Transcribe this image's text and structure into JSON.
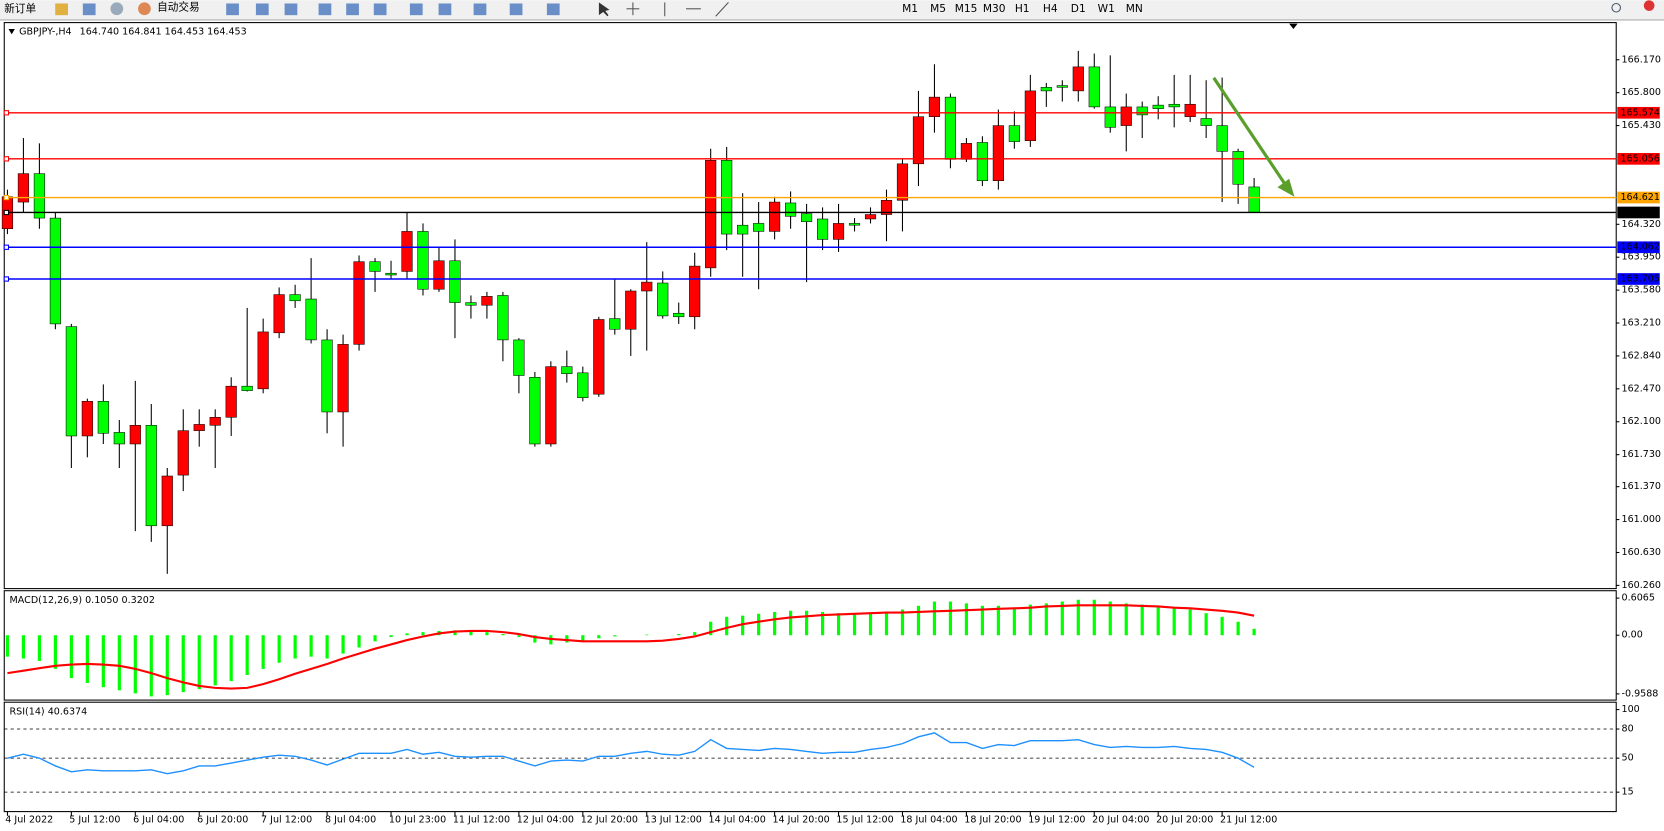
{
  "toolbar": {
    "new_order": "新订单",
    "auto_trading": "自动交易",
    "timeframes": [
      "M1",
      "M5",
      "M15",
      "M30",
      "H1",
      "H4",
      "D1",
      "W1",
      "MN"
    ]
  },
  "chart_data": [
    {
      "type": "candlestick",
      "title": "GBPJPY-,H4",
      "subtitle": "164.740 164.841 164.453 164.453",
      "categories": [
        "4 Jul 2022",
        null,
        null,
        null,
        "5 Jul 12:00",
        null,
        null,
        null,
        "6 Jul 04:00",
        null,
        null,
        null,
        "6 Jul 20:00",
        null,
        null,
        null,
        "7 Jul 12:00",
        null,
        null,
        null,
        "8 Jul 04:00",
        null,
        null,
        null,
        "10 Jul 23:00",
        null,
        null,
        null,
        "11 Jul 12:00",
        null,
        null,
        null,
        "12 Jul 04:00",
        null,
        null,
        null,
        "12 Jul 20:00",
        null,
        null,
        null,
        "13 Jul 12:00",
        null,
        null,
        null,
        "14 Jul 04:00",
        null,
        null,
        null,
        "14 Jul 20:00",
        null,
        null,
        null,
        "15 Jul 12:00",
        null,
        null,
        null,
        "18 Jul 04:00",
        null,
        null,
        null,
        "18 Jul 20:00",
        null,
        null,
        null,
        "19 Jul 12:00",
        null,
        null,
        null,
        "20 Jul 04:00",
        null,
        null,
        null,
        "20 Jul 20:00",
        null,
        null,
        null,
        "21 Jul 12:00",
        null,
        null
      ],
      "open": [
        164.27,
        164.57,
        164.89,
        164.39,
        163.17,
        161.94,
        162.33,
        161.98,
        161.85,
        162.06,
        160.93,
        161.5,
        162.0,
        162.06,
        162.15,
        162.5,
        162.47,
        163.1,
        163.53,
        163.48,
        163.02,
        162.21,
        162.97,
        163.9,
        163.77,
        163.79,
        164.24,
        163.59,
        163.91,
        163.44,
        163.41,
        163.52,
        163.02,
        162.6,
        161.85,
        162.72,
        162.65,
        162.41,
        163.26,
        163.14,
        163.57,
        163.66,
        163.32,
        163.28,
        163.83,
        165.04,
        164.31,
        164.33,
        164.24,
        164.56,
        164.44,
        164.38,
        164.15,
        164.33,
        164.38,
        164.43,
        164.59,
        165.0,
        165.53,
        165.75,
        165.05,
        165.24,
        164.81,
        165.43,
        165.26,
        165.86,
        165.88,
        165.82,
        166.09,
        165.64,
        165.43,
        165.64,
        165.66,
        165.67,
        165.53,
        165.51,
        165.43,
        165.14,
        164.74
      ],
      "high": [
        164.71,
        165.29,
        165.23,
        164.45,
        163.2,
        162.36,
        162.52,
        162.12,
        162.56,
        162.3,
        161.58,
        162.24,
        162.24,
        162.24,
        162.6,
        163.38,
        163.26,
        163.61,
        163.64,
        163.94,
        163.14,
        163.08,
        163.97,
        163.94,
        163.91,
        164.45,
        164.33,
        164.07,
        164.15,
        163.52,
        163.56,
        163.56,
        163.04,
        162.66,
        162.78,
        162.9,
        162.72,
        163.28,
        163.71,
        163.59,
        164.12,
        163.79,
        163.44,
        164.0,
        165.17,
        165.19,
        164.67,
        164.57,
        164.63,
        164.69,
        164.55,
        164.51,
        164.55,
        164.39,
        164.51,
        164.71,
        165.05,
        165.82,
        166.12,
        165.79,
        165.29,
        165.31,
        165.61,
        165.59,
        166.0,
        165.91,
        165.94,
        166.27,
        166.24,
        166.22,
        165.79,
        165.7,
        165.76,
        166.0,
        166.0,
        165.94,
        165.97,
        165.17,
        164.841
      ],
      "low": [
        164.21,
        164.45,
        164.27,
        163.14,
        161.58,
        161.7,
        161.85,
        161.58,
        160.87,
        160.75,
        160.39,
        161.32,
        161.82,
        161.58,
        161.94,
        162.44,
        162.42,
        163.04,
        163.38,
        162.98,
        161.97,
        161.82,
        162.9,
        163.56,
        163.71,
        163.71,
        163.52,
        163.56,
        163.04,
        163.26,
        163.26,
        162.78,
        162.42,
        161.82,
        161.82,
        162.54,
        162.33,
        162.38,
        163.08,
        162.84,
        162.9,
        163.26,
        163.2,
        163.14,
        163.73,
        164.03,
        163.73,
        163.59,
        164.15,
        164.27,
        163.67,
        164.03,
        164.01,
        164.24,
        164.33,
        164.13,
        164.24,
        164.75,
        165.35,
        164.95,
        165.02,
        164.75,
        164.71,
        165.17,
        165.19,
        165.64,
        165.7,
        165.7,
        165.62,
        165.35,
        165.14,
        165.29,
        165.5,
        165.41,
        165.47,
        165.29,
        164.57,
        164.55,
        164.453
      ],
      "close": [
        164.63,
        164.89,
        164.39,
        163.2,
        161.94,
        162.33,
        161.97,
        161.85,
        162.06,
        160.93,
        161.49,
        162.0,
        162.07,
        162.15,
        162.5,
        162.45,
        163.11,
        163.53,
        163.46,
        163.02,
        162.21,
        162.97,
        163.9,
        163.79,
        163.75,
        164.24,
        163.59,
        163.91,
        163.44,
        163.41,
        163.51,
        163.02,
        162.62,
        161.85,
        162.72,
        162.64,
        162.37,
        163.25,
        163.14,
        163.57,
        163.67,
        163.29,
        163.28,
        163.85,
        165.04,
        164.21,
        164.21,
        164.24,
        164.57,
        164.41,
        164.35,
        164.15,
        164.33,
        164.31,
        164.43,
        164.59,
        165.0,
        165.53,
        165.75,
        165.05,
        165.23,
        164.81,
        165.43,
        165.25,
        165.82,
        165.82,
        165.86,
        166.09,
        165.64,
        165.41,
        165.64,
        165.55,
        165.62,
        165.64,
        165.67,
        165.43,
        165.14,
        164.77,
        164.453
      ],
      "up_color": "#ff0000",
      "down_color": "#00ff00",
      "ylim": [
        160.236,
        166.576
      ],
      "yticks": [
        {
          "value": 166.17,
          "label": "166.170"
        },
        {
          "value": 165.8,
          "label": "165.800"
        },
        {
          "value": 165.43,
          "label": "165.430"
        },
        {
          "value": 164.32,
          "label": "164.320"
        },
        {
          "value": 163.95,
          "label": "163.950"
        },
        {
          "value": 163.58,
          "label": "163.580"
        },
        {
          "value": 163.21,
          "label": "163.210"
        },
        {
          "value": 162.84,
          "label": "162.840"
        },
        {
          "value": 162.47,
          "label": "162.470"
        },
        {
          "value": 162.1,
          "label": "162.100"
        },
        {
          "value": 161.73,
          "label": "161.730"
        },
        {
          "value": 161.37,
          "label": "161.370"
        },
        {
          "value": 161.0,
          "label": "161.000"
        },
        {
          "value": 160.63,
          "label": "160.630"
        },
        {
          "value": 160.26,
          "label": "160.260"
        }
      ],
      "hlines": [
        {
          "value": 165.574,
          "color": "#ff0000"
        },
        {
          "value": 165.056,
          "color": "#ff0000"
        },
        {
          "value": 164.621,
          "color": "#ffa500"
        },
        {
          "value": 164.453,
          "color": "#000000"
        },
        {
          "value": 164.062,
          "color": "#0000ff"
        },
        {
          "value": 163.705,
          "color": "#0000ff"
        }
      ]
    },
    {
      "type": "macd",
      "title": "MACD(12,26,9) 0.1050 0.3202",
      "series": [
        {
          "kind": "bar",
          "color": "#00ff00",
          "values": [
            -0.35,
            -0.38,
            -0.42,
            -0.55,
            -0.7,
            -0.78,
            -0.85,
            -0.9,
            -0.95,
            -1.0,
            -0.98,
            -0.93,
            -0.88,
            -0.82,
            -0.75,
            -0.65,
            -0.55,
            -0.45,
            -0.38,
            -0.35,
            -0.38,
            -0.3,
            -0.2,
            -0.1,
            -0.03,
            0.03,
            0.05,
            0.07,
            0.08,
            0.06,
            0.05,
            0.02,
            -0.03,
            -0.12,
            -0.15,
            -0.12,
            -0.1,
            -0.05,
            -0.02,
            0.0,
            0.01,
            0.0,
            0.02,
            0.05,
            0.22,
            0.3,
            0.32,
            0.35,
            0.38,
            0.4,
            0.4,
            0.38,
            0.36,
            0.35,
            0.36,
            0.38,
            0.42,
            0.48,
            0.55,
            0.55,
            0.52,
            0.48,
            0.48,
            0.45,
            0.5,
            0.52,
            0.55,
            0.58,
            0.58,
            0.55,
            0.52,
            0.5,
            0.48,
            0.45,
            0.42,
            0.36,
            0.3,
            0.22,
            0.105
          ]
        },
        {
          "kind": "line",
          "color": "#ff0000",
          "values": [
            -0.62,
            -0.58,
            -0.54,
            -0.5,
            -0.48,
            -0.47,
            -0.48,
            -0.5,
            -0.55,
            -0.62,
            -0.7,
            -0.77,
            -0.83,
            -0.86,
            -0.87,
            -0.86,
            -0.8,
            -0.72,
            -0.63,
            -0.55,
            -0.47,
            -0.38,
            -0.3,
            -0.22,
            -0.15,
            -0.08,
            -0.02,
            0.03,
            0.06,
            0.07,
            0.07,
            0.05,
            0.02,
            -0.03,
            -0.06,
            -0.08,
            -0.1,
            -0.1,
            -0.1,
            -0.1,
            -0.1,
            -0.09,
            -0.06,
            -0.02,
            0.05,
            0.12,
            0.18,
            0.22,
            0.26,
            0.29,
            0.31,
            0.33,
            0.34,
            0.35,
            0.36,
            0.37,
            0.37,
            0.38,
            0.39,
            0.4,
            0.41,
            0.42,
            0.43,
            0.44,
            0.45,
            0.47,
            0.48,
            0.49,
            0.49,
            0.49,
            0.49,
            0.48,
            0.47,
            0.45,
            0.44,
            0.42,
            0.4,
            0.37,
            0.3202
          ]
        }
      ],
      "ylim": [
        -1.06,
        0.71
      ],
      "yticks": [
        0.6065,
        {
          "value": 0,
          "label": "0.00"
        },
        -0.9588
      ]
    },
    {
      "type": "line",
      "title": "RSI(14) 40.6374",
      "series": [
        {
          "color": "#1e90ff",
          "values": [
            50,
            54,
            50,
            42,
            36,
            38,
            37,
            37,
            37,
            38,
            34,
            37,
            42,
            42,
            45,
            48,
            51,
            53,
            52,
            48,
            43,
            49,
            55,
            55,
            55,
            59,
            54,
            56,
            52,
            51,
            52,
            52,
            47,
            42,
            47,
            48,
            47,
            52,
            52,
            55,
            57,
            54,
            53,
            57,
            69,
            60,
            59,
            58,
            60,
            59,
            57,
            55,
            56,
            56,
            59,
            61,
            65,
            72,
            76,
            66,
            66,
            60,
            64,
            63,
            68,
            68,
            68,
            69,
            64,
            61,
            62,
            61,
            61,
            62,
            60,
            59,
            56,
            50,
            40.6374
          ]
        }
      ],
      "ylim": [
        -5,
        106.5
      ],
      "yticks": [
        100,
        80,
        50,
        15
      ],
      "levels": [
        80,
        50,
        15
      ]
    }
  ]
}
